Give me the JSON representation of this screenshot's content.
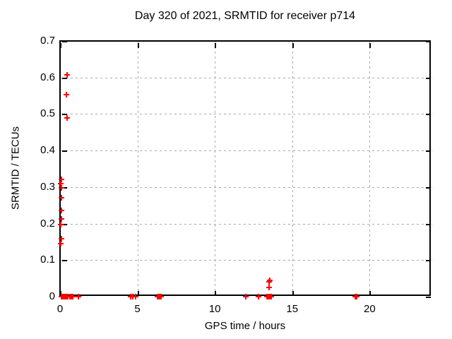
{
  "chart_data": {
    "type": "scatter",
    "title": "Day 320 of 2021, SRMTID for receiver p714",
    "xlabel": "GPS time / hours",
    "ylabel": "SRMTID / TECUs",
    "xlim": [
      0,
      24
    ],
    "ylim": [
      0,
      0.7
    ],
    "xticks": [
      0,
      5,
      10,
      15,
      20
    ],
    "xtick_labels": [
      "0",
      "5",
      "10",
      "15",
      "20"
    ],
    "yticks": [
      0,
      0.1,
      0.2,
      0.3,
      0.4,
      0.5,
      0.6,
      0.7
    ],
    "ytick_labels": [
      "0",
      "0.1",
      "0.2",
      "0.3",
      "0.4",
      "0.5",
      "0.6",
      "0.7"
    ],
    "grid": true,
    "legend": "none",
    "marker": "plus",
    "marker_color": "#ff0000",
    "grid_color": "#a8a8a8",
    "axis_color": "#000000",
    "background_color": "#ffffff",
    "series": [
      {
        "name": "SRMTID",
        "points": [
          [
            0.45,
            0.607
          ],
          [
            0.43,
            0.553
          ],
          [
            0.44,
            0.489
          ],
          [
            0.08,
            0.321
          ],
          [
            0.05,
            0.309
          ],
          [
            0.1,
            0.298
          ],
          [
            0.08,
            0.271
          ],
          [
            0.1,
            0.236
          ],
          [
            0.08,
            0.213
          ],
          [
            0.04,
            0.197
          ],
          [
            0.1,
            0.159
          ],
          [
            0.05,
            0.145
          ],
          [
            13.55,
            0.045
          ],
          [
            13.5,
            0.04
          ],
          [
            13.52,
            0.025
          ],
          [
            0.08,
            0
          ],
          [
            0.13,
            0
          ],
          [
            0.18,
            0
          ],
          [
            0.23,
            0
          ],
          [
            0.28,
            0
          ],
          [
            0.33,
            0
          ],
          [
            0.4,
            0
          ],
          [
            0.45,
            0
          ],
          [
            0.52,
            0
          ],
          [
            0.62,
            0
          ],
          [
            0.68,
            0
          ],
          [
            0.74,
            0
          ],
          [
            0.8,
            0
          ],
          [
            1.2,
            0
          ],
          [
            4.55,
            0
          ],
          [
            4.7,
            0
          ],
          [
            4.9,
            0
          ],
          [
            6.3,
            0
          ],
          [
            6.38,
            0
          ],
          [
            6.45,
            0
          ],
          [
            6.52,
            0
          ],
          [
            12.0,
            0
          ],
          [
            12.8,
            0
          ],
          [
            13.35,
            0
          ],
          [
            13.4,
            0
          ],
          [
            13.45,
            0
          ],
          [
            13.5,
            0
          ],
          [
            13.55,
            0
          ],
          [
            13.62,
            0
          ],
          [
            19.05,
            0
          ],
          [
            19.15,
            0
          ]
        ]
      }
    ]
  }
}
